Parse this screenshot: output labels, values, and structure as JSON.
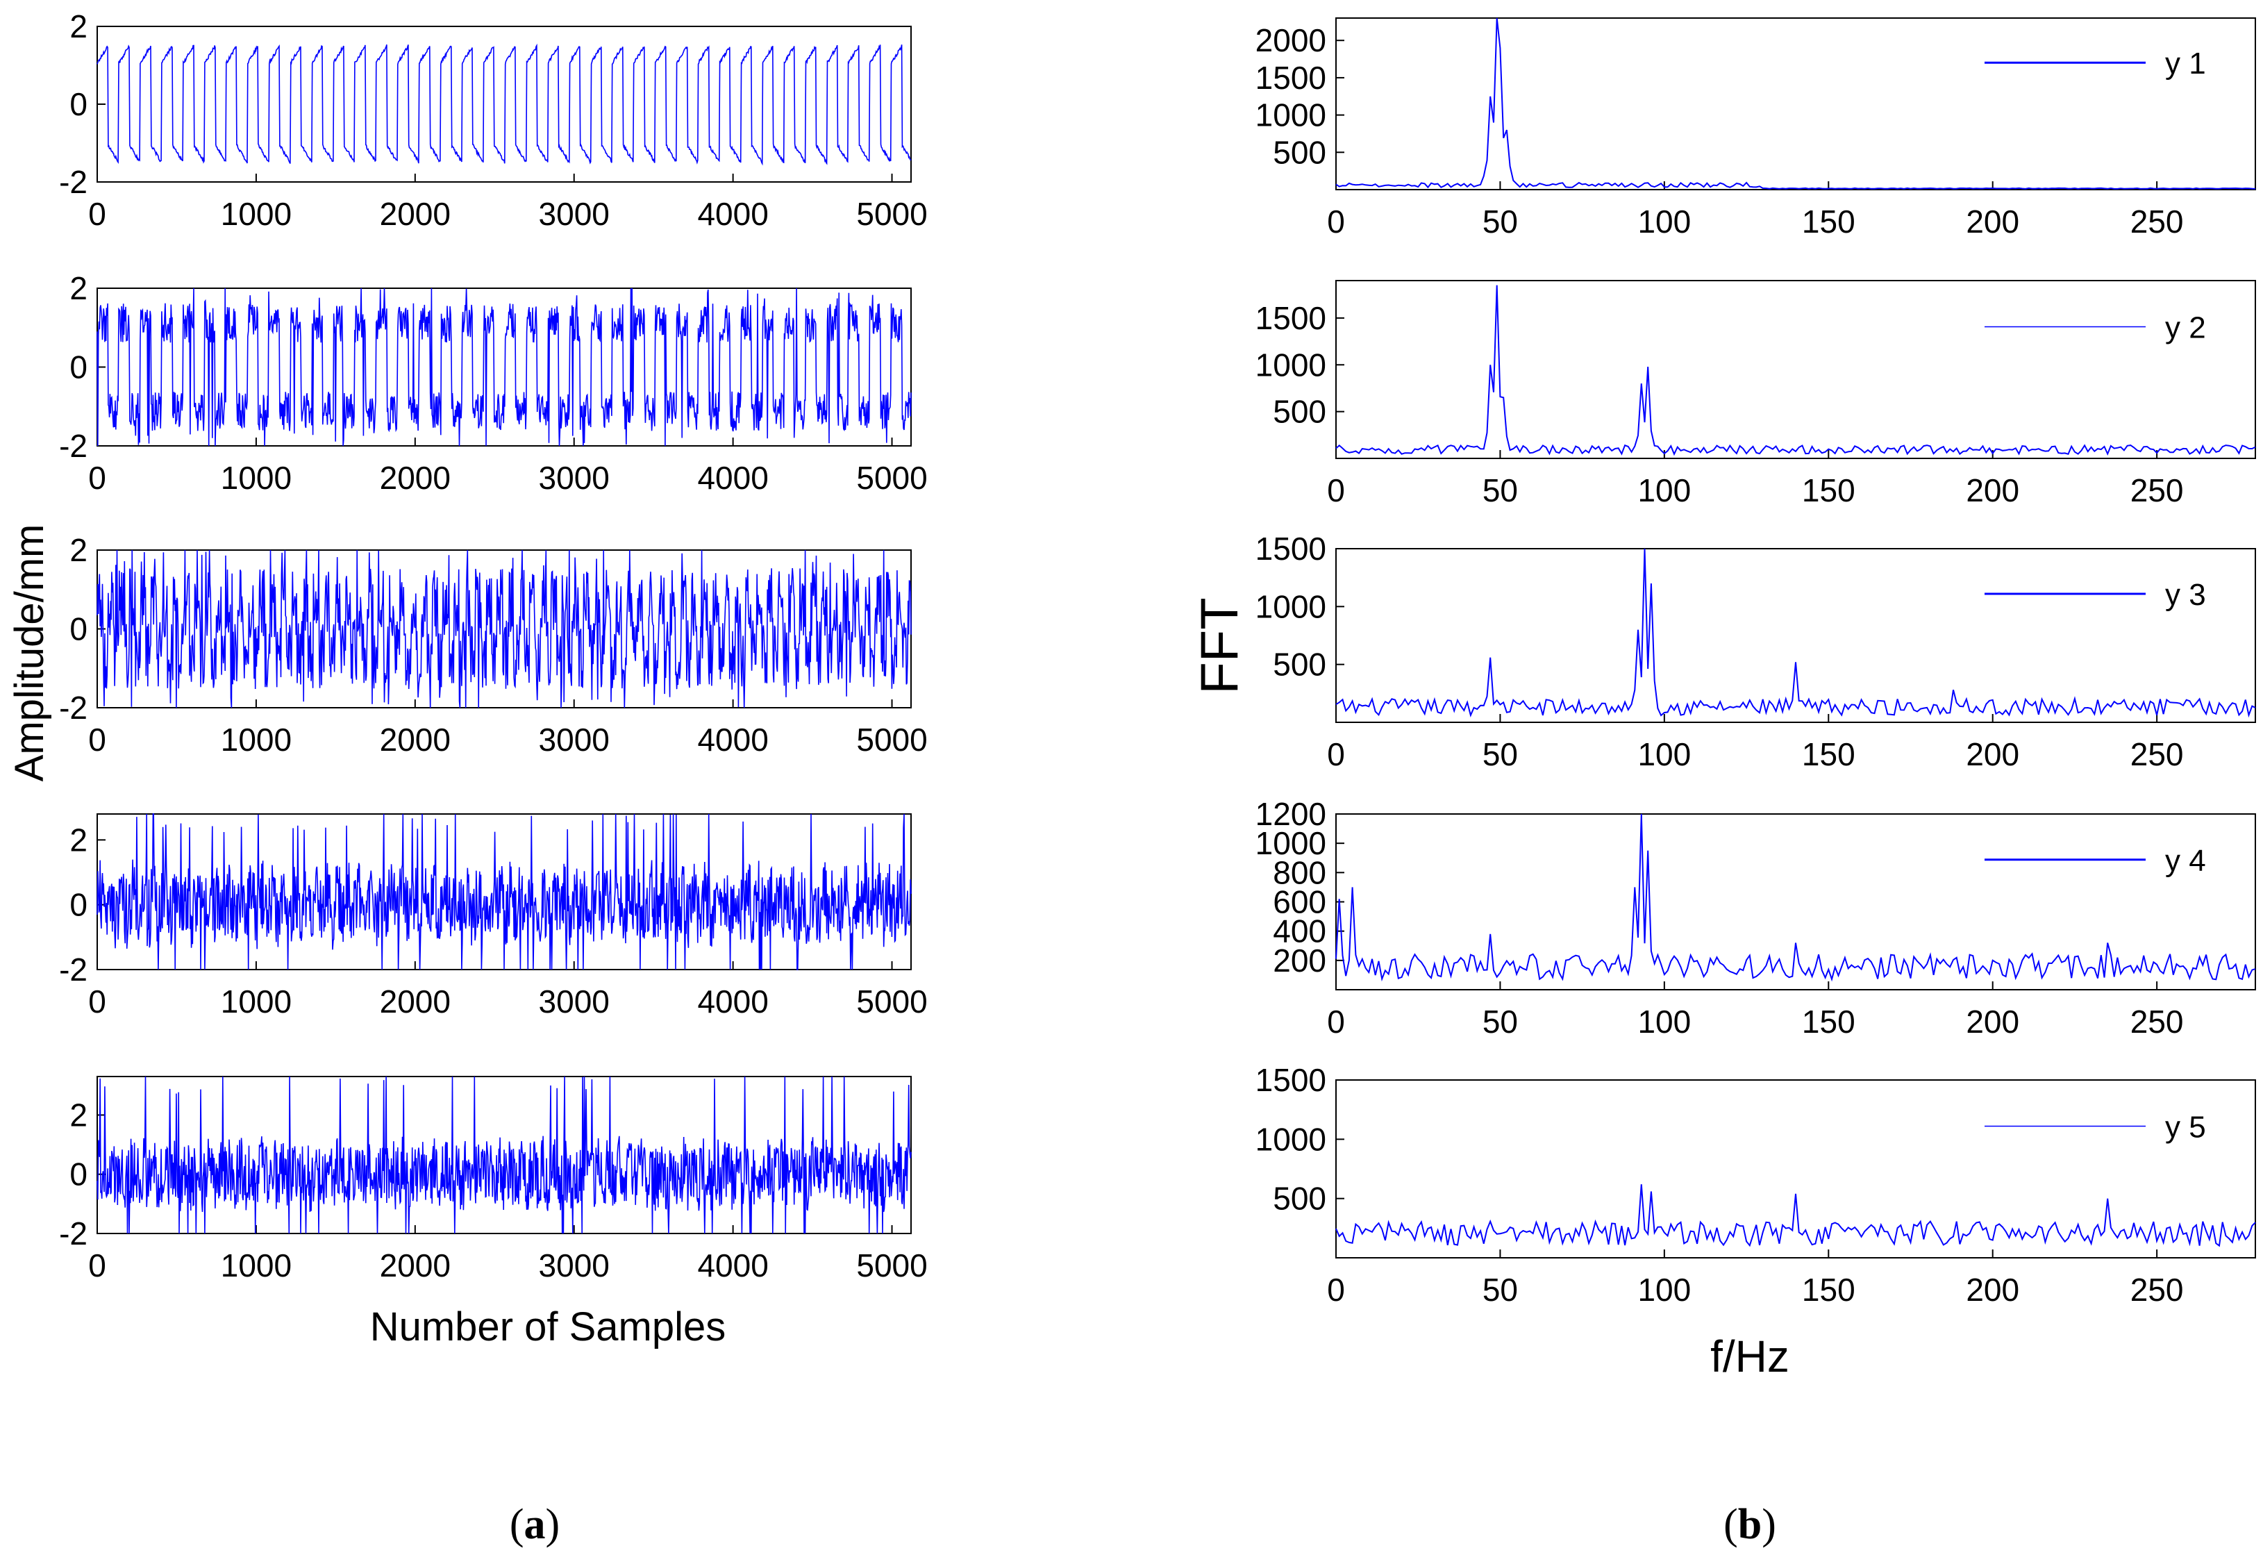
{
  "figure": {
    "caption_a": {
      "open": "(",
      "letter": "a",
      "close": ")"
    },
    "caption_b": {
      "open": "(",
      "letter": "b",
      "close": ")"
    },
    "line_color": "#0000ff",
    "axis_color": "#000000"
  },
  "chart_data": [
    {
      "type": "line",
      "panel": "a",
      "subplot": 1,
      "xlabel": "",
      "ylabel": "",
      "xlim": [
        0,
        5120
      ],
      "ylim": [
        -2,
        2
      ],
      "xticks": [
        "0",
        "1000",
        "2000",
        "3000",
        "4000",
        "5000"
      ],
      "yticks": [
        "-2",
        "0",
        "2"
      ],
      "signal": {
        "kind": "square",
        "period": 135,
        "amplitude": 1.5,
        "noise": 0.08,
        "spikes": 0
      }
    },
    {
      "type": "line",
      "panel": "a",
      "subplot": 2,
      "xlabel": "",
      "ylabel": "",
      "xlim": [
        0,
        5120
      ],
      "ylim": [
        -2,
        2
      ],
      "xticks": [
        "0",
        "1000",
        "2000",
        "3000",
        "4000",
        "5000"
      ],
      "yticks": [
        "-2",
        "0",
        "2"
      ],
      "signal": {
        "kind": "square-noisy",
        "period": 135,
        "amplitude": 1.4,
        "noise": 0.5,
        "spikes": 0.35
      }
    },
    {
      "type": "line",
      "panel": "a",
      "subplot": 3,
      "xlabel": "",
      "ylabel": "Amplitude/mm",
      "xlim": [
        0,
        5120
      ],
      "ylim": [
        -2,
        2
      ],
      "xticks": [
        "0",
        "1000",
        "2000",
        "3000",
        "4000",
        "5000"
      ],
      "yticks": [
        "-2",
        "0",
        "2"
      ],
      "signal": {
        "kind": "mixed",
        "period": 68,
        "amplitude": 1.1,
        "noise": 0.8,
        "spikes": 0.5
      }
    },
    {
      "type": "line",
      "panel": "a",
      "subplot": 4,
      "xlabel": "",
      "ylabel": "",
      "xlim": [
        0,
        5120
      ],
      "ylim": [
        -2,
        2.8
      ],
      "xticks": [
        "0",
        "1000",
        "2000",
        "3000",
        "4000",
        "5000"
      ],
      "yticks": [
        "-2",
        "0",
        "2"
      ],
      "signal": {
        "kind": "noise",
        "period": 68,
        "amplitude": 0.6,
        "noise": 1.0,
        "spikes": 0.45
      }
    },
    {
      "type": "line",
      "panel": "a",
      "subplot": 5,
      "xlabel": "Number of Samples",
      "ylabel": "",
      "xlim": [
        0,
        5120
      ],
      "ylim": [
        -2,
        3.3
      ],
      "xticks": [
        "0",
        "1000",
        "2000",
        "3000",
        "4000",
        "5000"
      ],
      "yticks": [
        "-2",
        "0",
        "2"
      ],
      "signal": {
        "kind": "noise",
        "period": 68,
        "amplitude": 0.4,
        "noise": 1.0,
        "spikes": 0.45
      }
    },
    {
      "type": "line",
      "panel": "b",
      "subplot": 1,
      "legend": "y 1",
      "legend_style": "solid",
      "legend_placement": "top-right",
      "xlabel": "",
      "ylabel": "",
      "xlim": [
        0,
        280
      ],
      "ylim": [
        0,
        2300
      ],
      "xticks": [
        "0",
        "50",
        "100",
        "150",
        "200",
        "250"
      ],
      "yticks": [
        "500",
        "1000",
        "1500",
        "2000"
      ],
      "ytick_values": [
        500,
        1000,
        1500,
        2000
      ],
      "spectrum": {
        "peaks": [
          [
            47,
            1250
          ],
          [
            49,
            2300
          ],
          [
            50,
            1900
          ],
          [
            52,
            800
          ],
          [
            95,
            90
          ]
        ],
        "baseline": 60,
        "noise": 40,
        "tail_start": 130,
        "tail_level": 10
      }
    },
    {
      "type": "line",
      "panel": "b",
      "subplot": 2,
      "legend": "y 2",
      "legend_style": "thin",
      "legend_placement": "top-right",
      "xlabel": "",
      "ylabel": "",
      "xlim": [
        0,
        280
      ],
      "ylim": [
        0,
        1900
      ],
      "xticks": [
        "0",
        "50",
        "100",
        "150",
        "200",
        "250"
      ],
      "yticks": [
        "500",
        "1000",
        "1500"
      ],
      "ytick_values": [
        500,
        1000,
        1500
      ],
      "spectrum": {
        "peaks": [
          [
            47,
            1000
          ],
          [
            49,
            1850
          ],
          [
            51,
            650
          ],
          [
            93,
            800
          ],
          [
            95,
            980
          ]
        ],
        "baseline": 90,
        "noise": 60,
        "tail_start": 999,
        "tail_level": 0
      }
    },
    {
      "type": "line",
      "panel": "b",
      "subplot": 3,
      "ylabel": "FFT",
      "legend": "y 3",
      "legend_style": "solid",
      "legend_placement": "top-right",
      "xlabel": "",
      "xlim": [
        0,
        280
      ],
      "ylim": [
        0,
        1500
      ],
      "xticks": [
        "0",
        "50",
        "100",
        "150",
        "200",
        "250"
      ],
      "yticks": [
        "500",
        "1000",
        "1500"
      ],
      "ytick_values": [
        500,
        1000,
        1500
      ],
      "spectrum": {
        "peaks": [
          [
            47,
            560
          ],
          [
            92,
            800
          ],
          [
            94,
            1500
          ],
          [
            96,
            1200
          ],
          [
            140,
            520
          ],
          [
            188,
            280
          ]
        ],
        "baseline": 120,
        "noise": 90,
        "tail_start": 999,
        "tail_level": 0
      }
    },
    {
      "type": "line",
      "panel": "b",
      "subplot": 4,
      "legend": "y 4",
      "legend_style": "solid",
      "legend_placement": "top-right",
      "xlabel": "",
      "ylabel": "",
      "xlim": [
        0,
        280
      ],
      "ylim": [
        0,
        1200
      ],
      "xticks": [
        "0",
        "50",
        "100",
        "150",
        "200",
        "250"
      ],
      "yticks": [
        "200",
        "400",
        "600",
        "800",
        "1000",
        "1200"
      ],
      "ytick_values": [
        200,
        400,
        600,
        800,
        1000,
        1200
      ],
      "spectrum": {
        "peaks": [
          [
            1,
            620
          ],
          [
            5,
            700
          ],
          [
            47,
            380
          ],
          [
            91,
            700
          ],
          [
            93,
            1200
          ],
          [
            95,
            950
          ],
          [
            140,
            320
          ],
          [
            235,
            320
          ]
        ],
        "baseline": 140,
        "noise": 110,
        "tail_start": 999,
        "tail_level": 0
      }
    },
    {
      "type": "line",
      "panel": "b",
      "subplot": 5,
      "legend": "y 5",
      "legend_style": "thin",
      "legend_placement": "top-right",
      "xlabel": "f/Hz",
      "ylabel": "",
      "xlim": [
        0,
        280
      ],
      "ylim": [
        0,
        1500
      ],
      "xticks": [
        "0",
        "50",
        "100",
        "150",
        "200",
        "250"
      ],
      "yticks": [
        "500",
        "1000",
        "1500"
      ],
      "ytick_values": [
        500,
        1000,
        1500
      ],
      "spectrum": {
        "peaks": [
          [
            93,
            620
          ],
          [
            96,
            560
          ],
          [
            140,
            540
          ],
          [
            235,
            500
          ]
        ],
        "baseline": 200,
        "noise": 130,
        "tail_start": 999,
        "tail_level": 0
      }
    }
  ]
}
